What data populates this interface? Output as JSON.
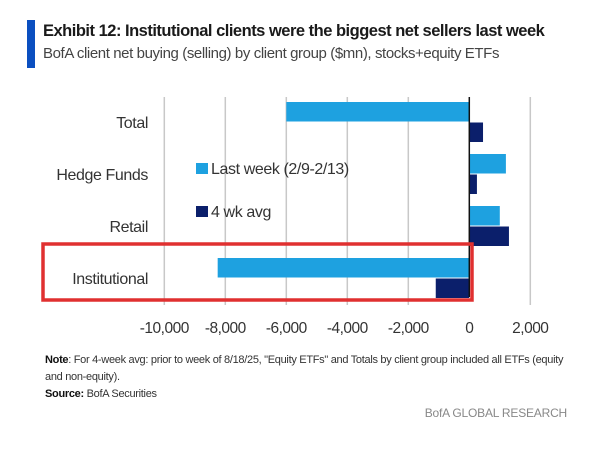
{
  "header": {
    "title": "Exhibit 12: Institutional clients were the biggest net sellers last week",
    "subtitle": "BofA client net buying (selling) by client group ($mn), stocks+equity ETFs"
  },
  "chart_data": {
    "type": "bar",
    "orientation": "horizontal",
    "categories": [
      "Total",
      "Hedge Funds",
      "Retail",
      "Institutional"
    ],
    "series": [
      {
        "name": "Last week (2/9-2/13)",
        "values": [
          -6000,
          1200,
          1000,
          -8250
        ],
        "color": "#1ea1e0"
      },
      {
        "name": "4 wk avg",
        "values": [
          450,
          250,
          1300,
          -1100
        ],
        "color": "#0b1f6b"
      }
    ],
    "xlim": [
      -10000,
      2000
    ],
    "xticks": [
      "-10,000",
      "-8,000",
      "-6,000",
      "-4,000",
      "-2,000",
      "0",
      "2,000"
    ],
    "xtick_values": [
      -10000,
      -8000,
      -6000,
      -4000,
      -2000,
      0,
      2000
    ],
    "grid": true,
    "legend": "center",
    "highlight": {
      "category": "Institutional",
      "color": "#e03030"
    }
  },
  "footer": {
    "note_label": "Note",
    "note_text": ": For 4-week avg: prior to week of 8/18/25, \"Equity ETFs\" and Totals by client group included all ETFs (equity and non-equity).",
    "source_label": "Source:",
    "source_text": " BofA Securities",
    "watermark": "BofA GLOBAL RESEARCH"
  }
}
